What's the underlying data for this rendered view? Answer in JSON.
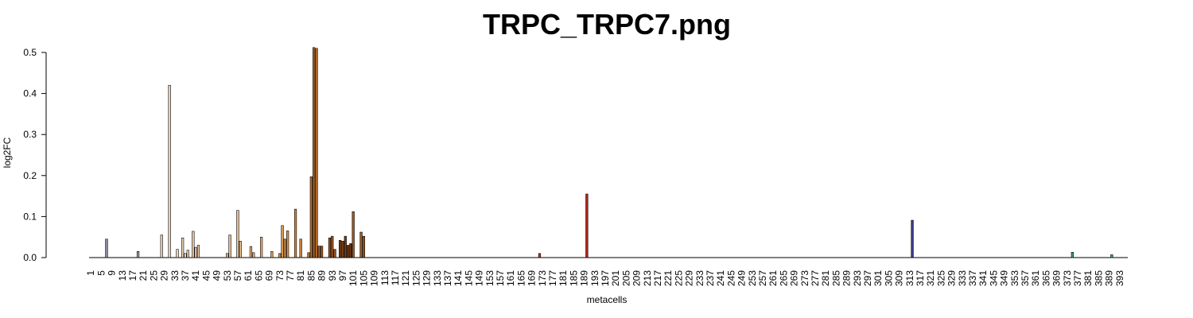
{
  "chart_data": {
    "type": "bar",
    "title": "TRPC_TRPC7.png",
    "xlabel": "metacells",
    "ylabel": "log2FC",
    "n_metacells": 395,
    "x_tick_start": 1,
    "x_tick_step": 4,
    "ylim": [
      0,
      0.5
    ],
    "yticks": [
      "0.0",
      "0.1",
      "0.2",
      "0.3",
      "0.4",
      "0.5"
    ],
    "grid": false,
    "legend": "none",
    "bars": [
      {
        "x": 7,
        "value": 0.045,
        "color": "#8c8ca0"
      },
      {
        "x": 19,
        "value": 0.015,
        "color": "#9aa39a"
      },
      {
        "x": 28,
        "value": 0.055,
        "color": "#f0d8c0"
      },
      {
        "x": 31,
        "value": 0.42,
        "color": "#f0d8c0"
      },
      {
        "x": 34,
        "value": 0.02,
        "color": "#f0d4b8"
      },
      {
        "x": 36,
        "value": 0.048,
        "color": "#f0d4b8"
      },
      {
        "x": 37,
        "value": 0.01,
        "color": "#f0d4b8"
      },
      {
        "x": 38,
        "value": 0.018,
        "color": "#f0d4b8"
      },
      {
        "x": 40,
        "value": 0.064,
        "color": "#f0cca8"
      },
      {
        "x": 41,
        "value": 0.025,
        "color": "#f0cca8"
      },
      {
        "x": 42,
        "value": 0.03,
        "color": "#f0cca8"
      },
      {
        "x": 53,
        "value": 0.01,
        "color": "#ecc090"
      },
      {
        "x": 54,
        "value": 0.055,
        "color": "#ecc090"
      },
      {
        "x": 57,
        "value": 0.115,
        "color": "#ecc090"
      },
      {
        "x": 58,
        "value": 0.04,
        "color": "#ecc090"
      },
      {
        "x": 62,
        "value": 0.027,
        "color": "#e8b078"
      },
      {
        "x": 63,
        "value": 0.012,
        "color": "#e8b078"
      },
      {
        "x": 66,
        "value": 0.05,
        "color": "#e8b078"
      },
      {
        "x": 70,
        "value": 0.015,
        "color": "#e0a060"
      },
      {
        "x": 73,
        "value": 0.01,
        "color": "#dc9850"
      },
      {
        "x": 74,
        "value": 0.078,
        "color": "#dc9850"
      },
      {
        "x": 75,
        "value": 0.045,
        "color": "#dc9850"
      },
      {
        "x": 76,
        "value": 0.065,
        "color": "#dc9850"
      },
      {
        "x": 79,
        "value": 0.118,
        "color": "#d08840"
      },
      {
        "x": 81,
        "value": 0.045,
        "color": "#d08840"
      },
      {
        "x": 84,
        "value": 0.012,
        "color": "#b8702c"
      },
      {
        "x": 85,
        "value": 0.197,
        "color": "#b8702c"
      },
      {
        "x": 86,
        "value": 0.512,
        "color": "#b06828"
      },
      {
        "x": 87,
        "value": 0.51,
        "color": "#b06828"
      },
      {
        "x": 88,
        "value": 0.028,
        "color": "#a86024"
      },
      {
        "x": 89,
        "value": 0.028,
        "color": "#a86024"
      },
      {
        "x": 92,
        "value": 0.048,
        "color": "#9a5420"
      },
      {
        "x": 93,
        "value": 0.052,
        "color": "#9a5420"
      },
      {
        "x": 94,
        "value": 0.02,
        "color": "#9a5420"
      },
      {
        "x": 96,
        "value": 0.042,
        "color": "#7a3c14"
      },
      {
        "x": 97,
        "value": 0.04,
        "color": "#7a3c14"
      },
      {
        "x": 98,
        "value": 0.052,
        "color": "#7a3c14"
      },
      {
        "x": 99,
        "value": 0.03,
        "color": "#7a3c14"
      },
      {
        "x": 100,
        "value": 0.034,
        "color": "#6a3210"
      },
      {
        "x": 101,
        "value": 0.112,
        "color": "#a05a20"
      },
      {
        "x": 104,
        "value": 0.062,
        "color": "#a05a20"
      },
      {
        "x": 105,
        "value": 0.052,
        "color": "#a05a20"
      },
      {
        "x": 172,
        "value": 0.01,
        "color": "#d03020"
      },
      {
        "x": 190,
        "value": 0.155,
        "color": "#c02018"
      },
      {
        "x": 314,
        "value": 0.091,
        "color": "#3a3a8a"
      },
      {
        "x": 375,
        "value": 0.013,
        "color": "#40a080"
      },
      {
        "x": 390,
        "value": 0.007,
        "color": "#40a0a0"
      }
    ]
  }
}
